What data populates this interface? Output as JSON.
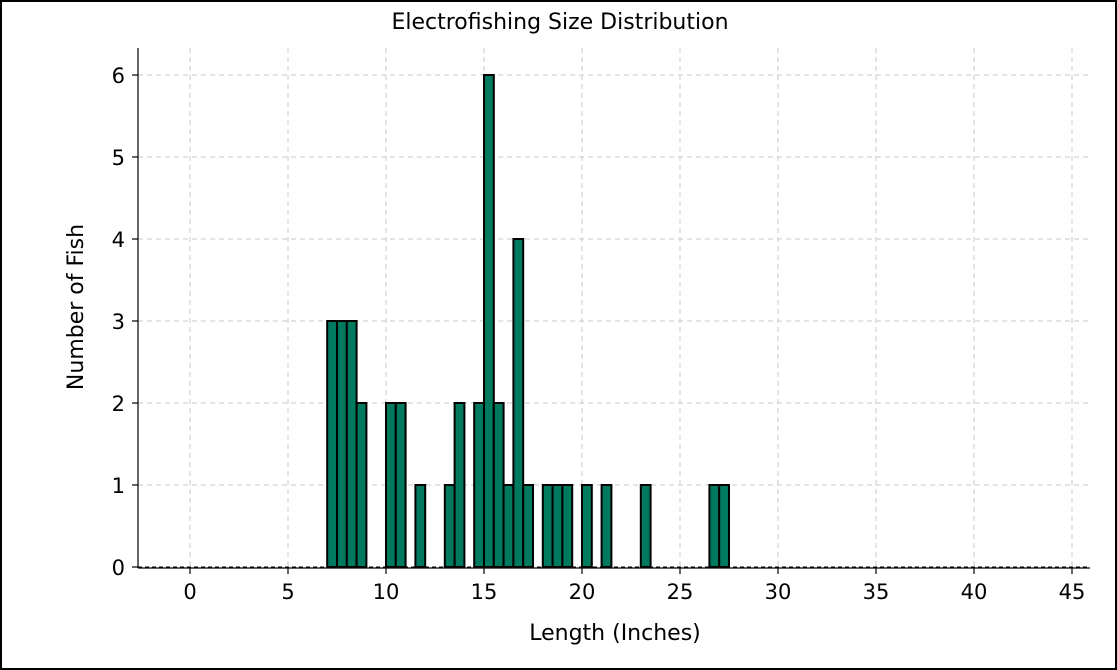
{
  "chart_data": {
    "type": "bar",
    "title": "Electrofishing Size Distribution",
    "xlabel": "Length (Inches)",
    "ylabel": "Number of Fish",
    "xlim": [
      -2.5,
      46.0
    ],
    "ylim": [
      0,
      6.3
    ],
    "xticks": [
      0,
      5,
      10,
      15,
      20,
      25,
      30,
      35,
      40,
      45
    ],
    "yticks": [
      0,
      1,
      2,
      3,
      4,
      5,
      6
    ],
    "grid": true,
    "bar_width": 0.5,
    "bar_color": "#007a5e",
    "bars": [
      {
        "x": 7.25,
        "value": 3
      },
      {
        "x": 7.75,
        "value": 3
      },
      {
        "x": 8.25,
        "value": 3
      },
      {
        "x": 8.75,
        "value": 2
      },
      {
        "x": 10.25,
        "value": 2
      },
      {
        "x": 10.75,
        "value": 2
      },
      {
        "x": 11.75,
        "value": 1
      },
      {
        "x": 13.25,
        "value": 1
      },
      {
        "x": 13.75,
        "value": 2
      },
      {
        "x": 14.75,
        "value": 2
      },
      {
        "x": 15.25,
        "value": 6
      },
      {
        "x": 15.75,
        "value": 2
      },
      {
        "x": 16.25,
        "value": 1
      },
      {
        "x": 16.75,
        "value": 4
      },
      {
        "x": 17.25,
        "value": 1
      },
      {
        "x": 18.25,
        "value": 1
      },
      {
        "x": 18.75,
        "value": 1
      },
      {
        "x": 19.25,
        "value": 1
      },
      {
        "x": 20.25,
        "value": 1
      },
      {
        "x": 21.25,
        "value": 1
      },
      {
        "x": 23.25,
        "value": 1
      },
      {
        "x": 26.75,
        "value": 1
      },
      {
        "x": 27.25,
        "value": 1
      }
    ]
  }
}
